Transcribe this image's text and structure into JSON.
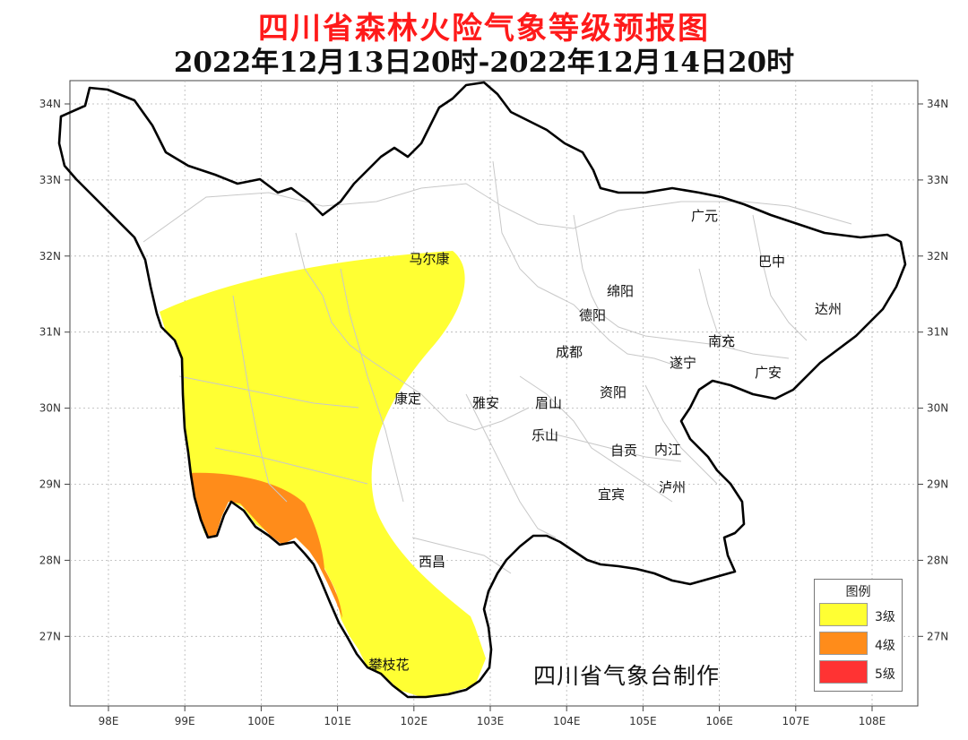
{
  "title": "四川省森林火险气象等级预报图",
  "subtitle": "2022年12月13日20时-2022年12月14日20时",
  "credit": "四川省气象台制作",
  "axes": {
    "lon_ticks": [
      "98E",
      "99E",
      "100E",
      "101E",
      "102E",
      "103E",
      "104E",
      "105E",
      "106E",
      "107E",
      "108E"
    ],
    "lat_ticks": [
      "34N",
      "33N",
      "32N",
      "31N",
      "30N",
      "29N",
      "28N",
      "27N"
    ]
  },
  "cities": [
    {
      "name": "广元"
    },
    {
      "name": "巴中"
    },
    {
      "name": "马尔康"
    },
    {
      "name": "绵阳"
    },
    {
      "name": "德阳"
    },
    {
      "name": "达州"
    },
    {
      "name": "南充"
    },
    {
      "name": "成都"
    },
    {
      "name": "遂宁"
    },
    {
      "name": "广安"
    },
    {
      "name": "康定"
    },
    {
      "name": "雅安"
    },
    {
      "name": "眉山"
    },
    {
      "name": "资阳"
    },
    {
      "name": "乐山"
    },
    {
      "name": "自贡"
    },
    {
      "name": "内江"
    },
    {
      "name": "宜宾"
    },
    {
      "name": "泸州"
    },
    {
      "name": "西昌"
    },
    {
      "name": "攀枝花"
    }
  ],
  "legend": {
    "title": "图例",
    "items": [
      {
        "label": "3级",
        "color": "#ffff33"
      },
      {
        "label": "4级",
        "color": "#ff8c1a"
      },
      {
        "label": "5级",
        "color": "#ff3333"
      }
    ]
  },
  "colors": {
    "level3": "#ffff33",
    "level4": "#ff8c1a",
    "border": "#000000",
    "inner_boundary": "#c8c8c8",
    "grid": "#b4b4b4"
  }
}
